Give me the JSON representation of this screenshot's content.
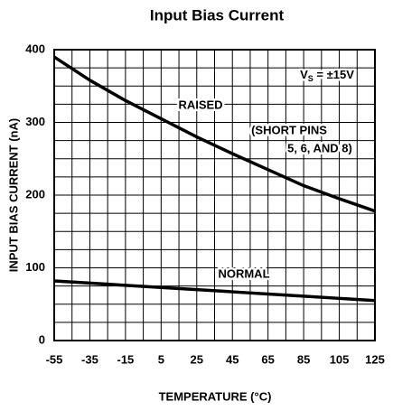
{
  "chart_data": {
    "type": "line",
    "title": "Input Bias Current",
    "xlabel": "TEMPERATURE (°C)",
    "ylabel": "INPUT BIAS CURRENT (nA)",
    "x": [
      -55,
      -35,
      -15,
      5,
      25,
      45,
      65,
      85,
      105,
      125
    ],
    "series": [
      {
        "name": "RAISED",
        "color": "#000000",
        "values": [
          390,
          358,
          330,
          305,
          280,
          257,
          235,
          213,
          195,
          178
        ]
      },
      {
        "name": "NORMAL",
        "color": "#000000",
        "values": [
          82,
          79,
          76,
          73,
          70,
          67,
          64,
          61,
          58,
          55
        ]
      }
    ],
    "annotations": {
      "supply": {
        "main": "V",
        "sub": "S",
        "rest": " = ±15V"
      },
      "note1": "(SHORT PINS",
      "note2": "5, 6, AND 8)"
    },
    "xlim": [
      -55,
      125
    ],
    "ylim": [
      0,
      400
    ],
    "xticks": [
      -55,
      -35,
      -15,
      5,
      25,
      45,
      65,
      85,
      105,
      125
    ],
    "yticks": [
      0,
      100,
      200,
      300,
      400
    ],
    "xgrid": [
      -55,
      -45,
      -35,
      -25,
      -15,
      -5,
      5,
      15,
      25,
      35,
      45,
      55,
      65,
      75,
      85,
      95,
      105,
      115,
      125
    ],
    "ygrid": [
      0,
      25,
      50,
      75,
      100,
      125,
      150,
      175,
      200,
      225,
      250,
      275,
      300,
      325,
      350,
      375,
      400
    ],
    "grid": true
  }
}
